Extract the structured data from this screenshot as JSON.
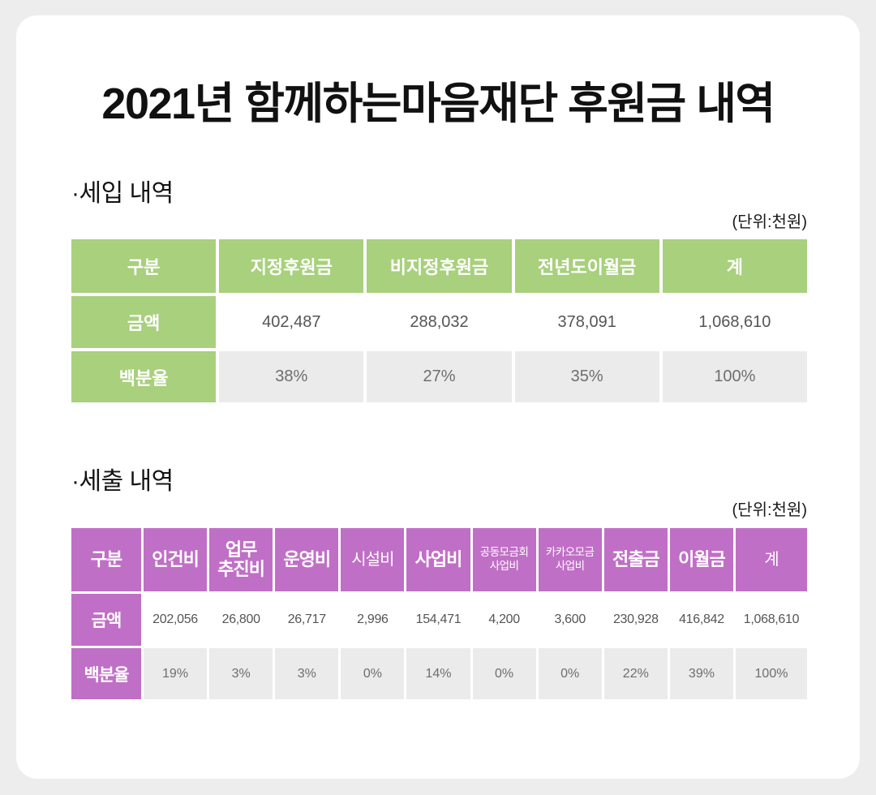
{
  "page": {
    "title": "2021년 함께하는마음재단 후원금 내역"
  },
  "income_section": {
    "heading": "·세입 내역",
    "unit_label": "(단위:천원)",
    "table": {
      "headers": [
        "구분",
        "지정후원금",
        "비지정후원금",
        "전년도이월금",
        "계"
      ],
      "rows": [
        {
          "label": "금액",
          "values": [
            "402,487",
            "288,032",
            "378,091",
            "1,068,610"
          ]
        },
        {
          "label": "백분율",
          "values": [
            "38%",
            "27%",
            "35%",
            "100%"
          ]
        }
      ]
    }
  },
  "expense_section": {
    "heading": "·세출 내역",
    "unit_label": "(단위:천원)",
    "table": {
      "headers": [
        "구분",
        "인건비",
        "업무\n추진비",
        "운영비",
        "시설비",
        "사업비",
        "공동모금회\n사업비",
        "카카오모금\n사업비",
        "전출금",
        "이월금",
        "계"
      ],
      "rows": [
        {
          "label": "금액",
          "values": [
            "202,056",
            "26,800",
            "26,717",
            "2,996",
            "154,471",
            "4,200",
            "3,600",
            "230,928",
            "416,842",
            "1,068,610"
          ]
        },
        {
          "label": "백분율",
          "values": [
            "19%",
            "3%",
            "3%",
            "0%",
            "14%",
            "0%",
            "0%",
            "22%",
            "39%",
            "100%"
          ]
        }
      ]
    }
  },
  "colors": {
    "page_background": "#ededed",
    "card_background": "#ffffff",
    "income_accent": "#a8d07d",
    "expense_accent": "#c06fc6",
    "muted_row": "#ebebeb",
    "number_text": "#555555",
    "header_text": "#ffffff"
  }
}
